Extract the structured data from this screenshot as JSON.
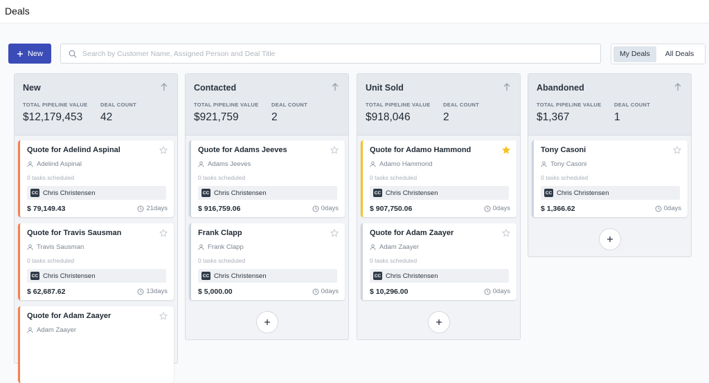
{
  "header": {
    "title": "Deals"
  },
  "toolbar": {
    "new_button": "New",
    "search_placeholder": "Search by Customer Name, Assigned Person and Deal Title",
    "tabs": [
      {
        "label": "My Deals",
        "active": true
      },
      {
        "label": "All Deals",
        "active": false
      }
    ]
  },
  "columns": [
    {
      "title": "New",
      "pipeline_label": "TOTAL PIPELINE VALUE",
      "pipeline_value": "$12,179,453",
      "count_label": "DEAL COUNT",
      "count": 42,
      "add_button": false,
      "cards": [
        {
          "title": "Quote for Adelind Aspinal",
          "person": "Adelind Aspinal",
          "tasks": "0 tasks scheduled",
          "initials": "CC",
          "assignee": "Chris Christensen",
          "amount": "$ 79,149.43",
          "age": "21days",
          "accent": "#f5814f",
          "starred": false
        },
        {
          "title": "Quote for Travis Sausman",
          "person": "Travis Sausman",
          "tasks": "0 tasks scheduled",
          "initials": "CC",
          "assignee": "Chris Christensen",
          "amount": "$ 62,687.62",
          "age": "13days",
          "accent": "#f5814f",
          "starred": false
        },
        {
          "title": "Quote for Adam Zaayer",
          "person": "Adam Zaayer",
          "accent": "#f5814f",
          "starred": false
        }
      ]
    },
    {
      "title": "Contacted",
      "pipeline_label": "TOTAL PIPELINE VALUE",
      "pipeline_value": "$921,759",
      "count_label": "DEAL COUNT",
      "count": 2,
      "add_button": true,
      "cards": [
        {
          "title": "Quote for Adams Jeeves",
          "person": "Adams Jeeves",
          "tasks": "0 tasks scheduled",
          "initials": "CC",
          "assignee": "Chris Christensen",
          "amount": "$ 916,759.06",
          "age": "0days",
          "accent": "#cdd5e1",
          "starred": false
        },
        {
          "title": "Frank Clapp",
          "person": "Frank Clapp",
          "tasks": "0 tasks scheduled",
          "initials": "CC",
          "assignee": "Chris Christensen",
          "amount": "$ 5,000.00",
          "age": "0days",
          "accent": "#cdd5e1",
          "starred": false
        }
      ]
    },
    {
      "title": "Unit Sold",
      "pipeline_label": "TOTAL PIPELINE VALUE",
      "pipeline_value": "$918,046",
      "count_label": "DEAL COUNT",
      "count": 2,
      "add_button": true,
      "cards": [
        {
          "title": "Quote for Adamo Hammond",
          "person": "Adamo Hammond",
          "tasks": "0 tasks scheduled",
          "initials": "CC",
          "assignee": "Chris Christensen",
          "amount": "$ 907,750.06",
          "age": "0days",
          "accent": "#f7c325",
          "starred": true
        },
        {
          "title": "Quote for Adam Zaayer",
          "person": "Adam Zaayer",
          "tasks": "0 tasks scheduled",
          "initials": "CC",
          "assignee": "Chris Christensen",
          "amount": "$ 10,296.00",
          "age": "0days",
          "accent": "#cdd5e1",
          "starred": false
        }
      ]
    },
    {
      "title": "Abandoned",
      "pipeline_label": "TOTAL PIPELINE VALUE",
      "pipeline_value": "$1,367",
      "count_label": "DEAL COUNT",
      "count": 1,
      "add_button": true,
      "cards": [
        {
          "title": "Tony Casoni",
          "person": "Tony Casoni",
          "tasks": "0 tasks scheduled",
          "initials": "CC",
          "assignee": "Chris Christensen",
          "amount": "$ 1,366.62",
          "age": "0days",
          "accent": "#cdd5e1",
          "starred": false
        }
      ]
    }
  ]
}
